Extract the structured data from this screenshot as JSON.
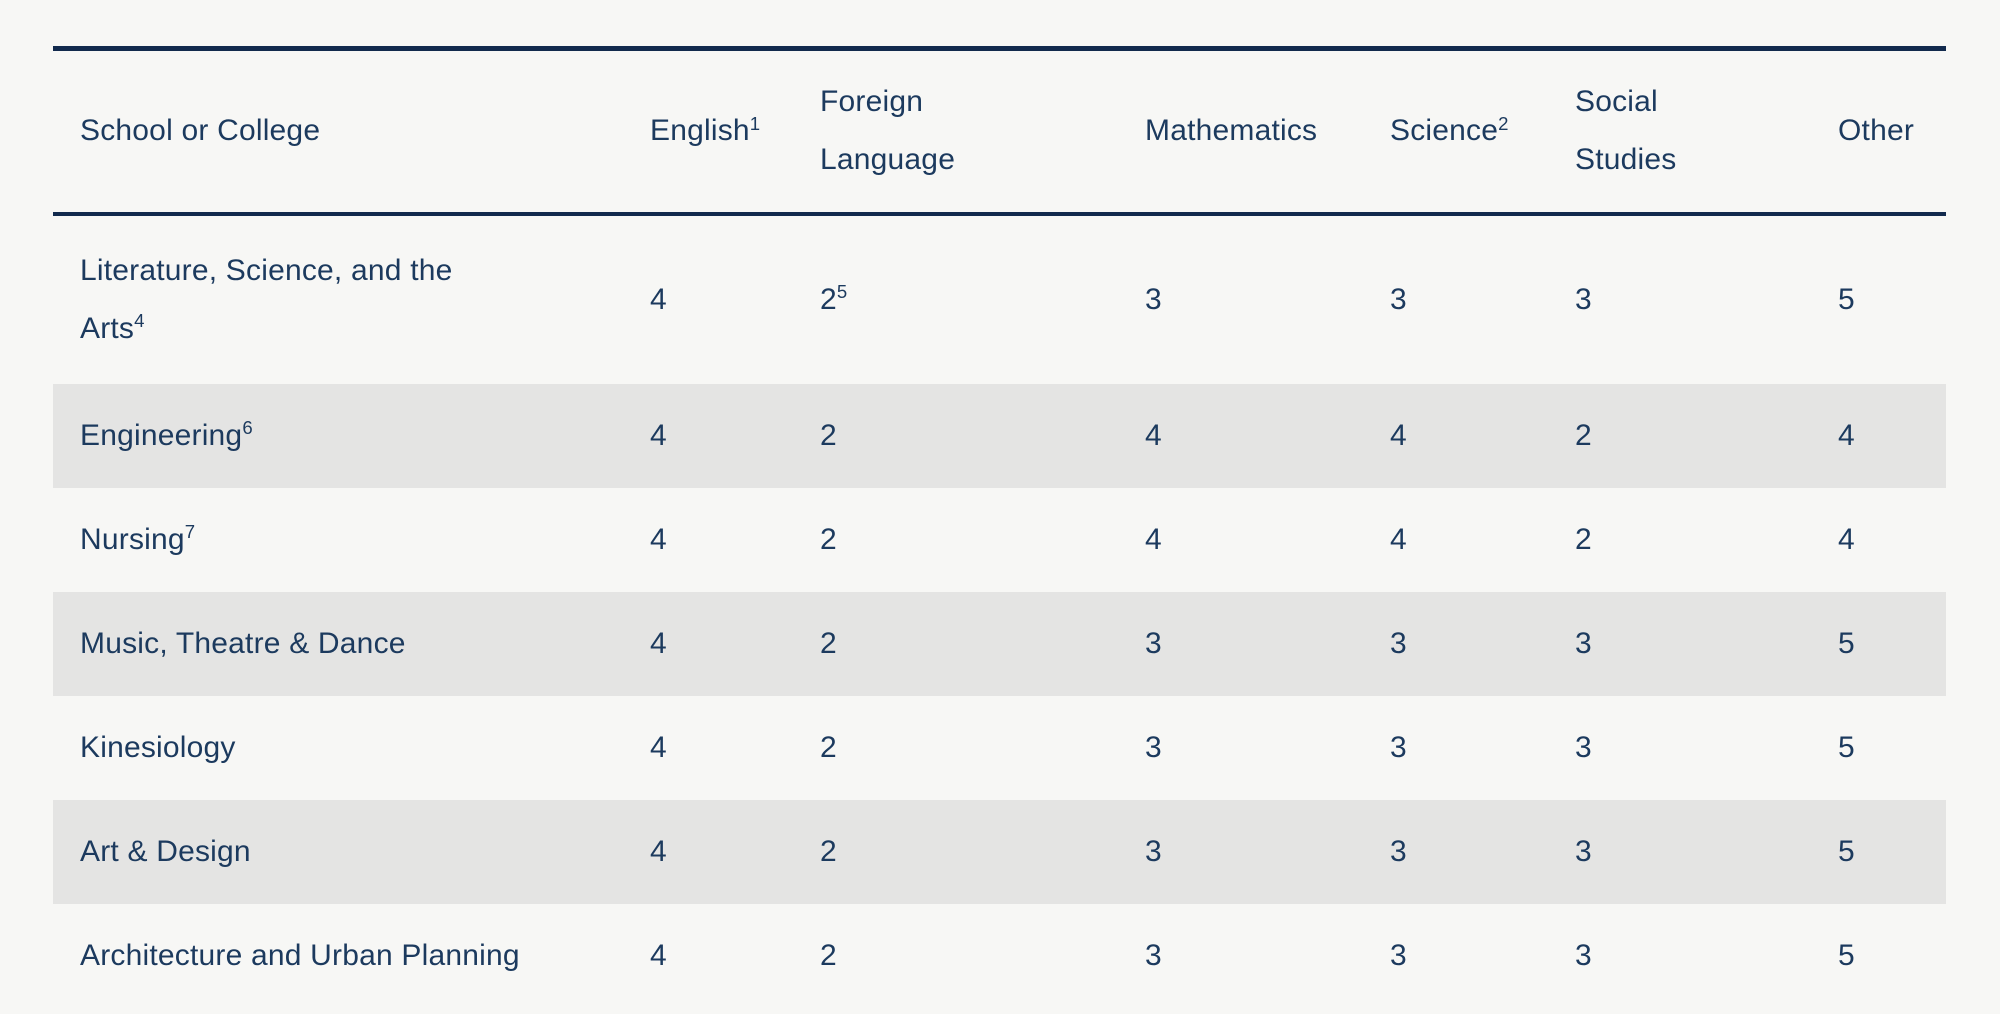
{
  "theme": {
    "page_bg": "#f7f7f5",
    "stripe_bg": "#e4e4e3",
    "text_color": "#1c3a5e",
    "rule_color": "#122a4d"
  },
  "table": {
    "columns": [
      {
        "key": "school",
        "label": "School or College",
        "sup": ""
      },
      {
        "key": "english",
        "label": "English",
        "sup": "1"
      },
      {
        "key": "foreign-language",
        "label": "Foreign Language",
        "sup": ""
      },
      {
        "key": "mathematics",
        "label": "Mathematics",
        "sup": ""
      },
      {
        "key": "science",
        "label": "Science",
        "sup": "2"
      },
      {
        "key": "social-studies",
        "label": "Social Studies",
        "sup": ""
      },
      {
        "key": "other",
        "label": "Other",
        "sup": ""
      }
    ],
    "rows": [
      {
        "school": {
          "text": "Literature, Science, and the Arts",
          "sup": "4"
        },
        "cells": [
          {
            "text": "4",
            "sup": ""
          },
          {
            "text": "2",
            "sup": "5"
          },
          {
            "text": "3",
            "sup": ""
          },
          {
            "text": "3",
            "sup": ""
          },
          {
            "text": "3",
            "sup": ""
          },
          {
            "text": "5",
            "sup": ""
          }
        ]
      },
      {
        "school": {
          "text": "Engineering",
          "sup": "6"
        },
        "cells": [
          {
            "text": "4",
            "sup": ""
          },
          {
            "text": "2",
            "sup": ""
          },
          {
            "text": "4",
            "sup": ""
          },
          {
            "text": "4",
            "sup": ""
          },
          {
            "text": "2",
            "sup": ""
          },
          {
            "text": "4",
            "sup": ""
          }
        ]
      },
      {
        "school": {
          "text": "Nursing",
          "sup": "7"
        },
        "cells": [
          {
            "text": "4",
            "sup": ""
          },
          {
            "text": "2",
            "sup": ""
          },
          {
            "text": "4",
            "sup": ""
          },
          {
            "text": "4",
            "sup": ""
          },
          {
            "text": "2",
            "sup": ""
          },
          {
            "text": "4",
            "sup": ""
          }
        ]
      },
      {
        "school": {
          "text": "Music, Theatre & Dance",
          "sup": ""
        },
        "cells": [
          {
            "text": "4",
            "sup": ""
          },
          {
            "text": "2",
            "sup": ""
          },
          {
            "text": "3",
            "sup": ""
          },
          {
            "text": "3",
            "sup": ""
          },
          {
            "text": "3",
            "sup": ""
          },
          {
            "text": "5",
            "sup": ""
          }
        ]
      },
      {
        "school": {
          "text": "Kinesiology",
          "sup": ""
        },
        "cells": [
          {
            "text": "4",
            "sup": ""
          },
          {
            "text": "2",
            "sup": ""
          },
          {
            "text": "3",
            "sup": ""
          },
          {
            "text": "3",
            "sup": ""
          },
          {
            "text": "3",
            "sup": ""
          },
          {
            "text": "5",
            "sup": ""
          }
        ]
      },
      {
        "school": {
          "text": "Art & Design",
          "sup": ""
        },
        "cells": [
          {
            "text": "4",
            "sup": ""
          },
          {
            "text": "2",
            "sup": ""
          },
          {
            "text": "3",
            "sup": ""
          },
          {
            "text": "3",
            "sup": ""
          },
          {
            "text": "3",
            "sup": ""
          },
          {
            "text": "5",
            "sup": ""
          }
        ]
      },
      {
        "school": {
          "text": "Architecture and Urban Planning",
          "sup": ""
        },
        "cells": [
          {
            "text": "4",
            "sup": ""
          },
          {
            "text": "2",
            "sup": ""
          },
          {
            "text": "3",
            "sup": ""
          },
          {
            "text": "3",
            "sup": ""
          },
          {
            "text": "3",
            "sup": ""
          },
          {
            "text": "5",
            "sup": ""
          }
        ]
      }
    ]
  }
}
